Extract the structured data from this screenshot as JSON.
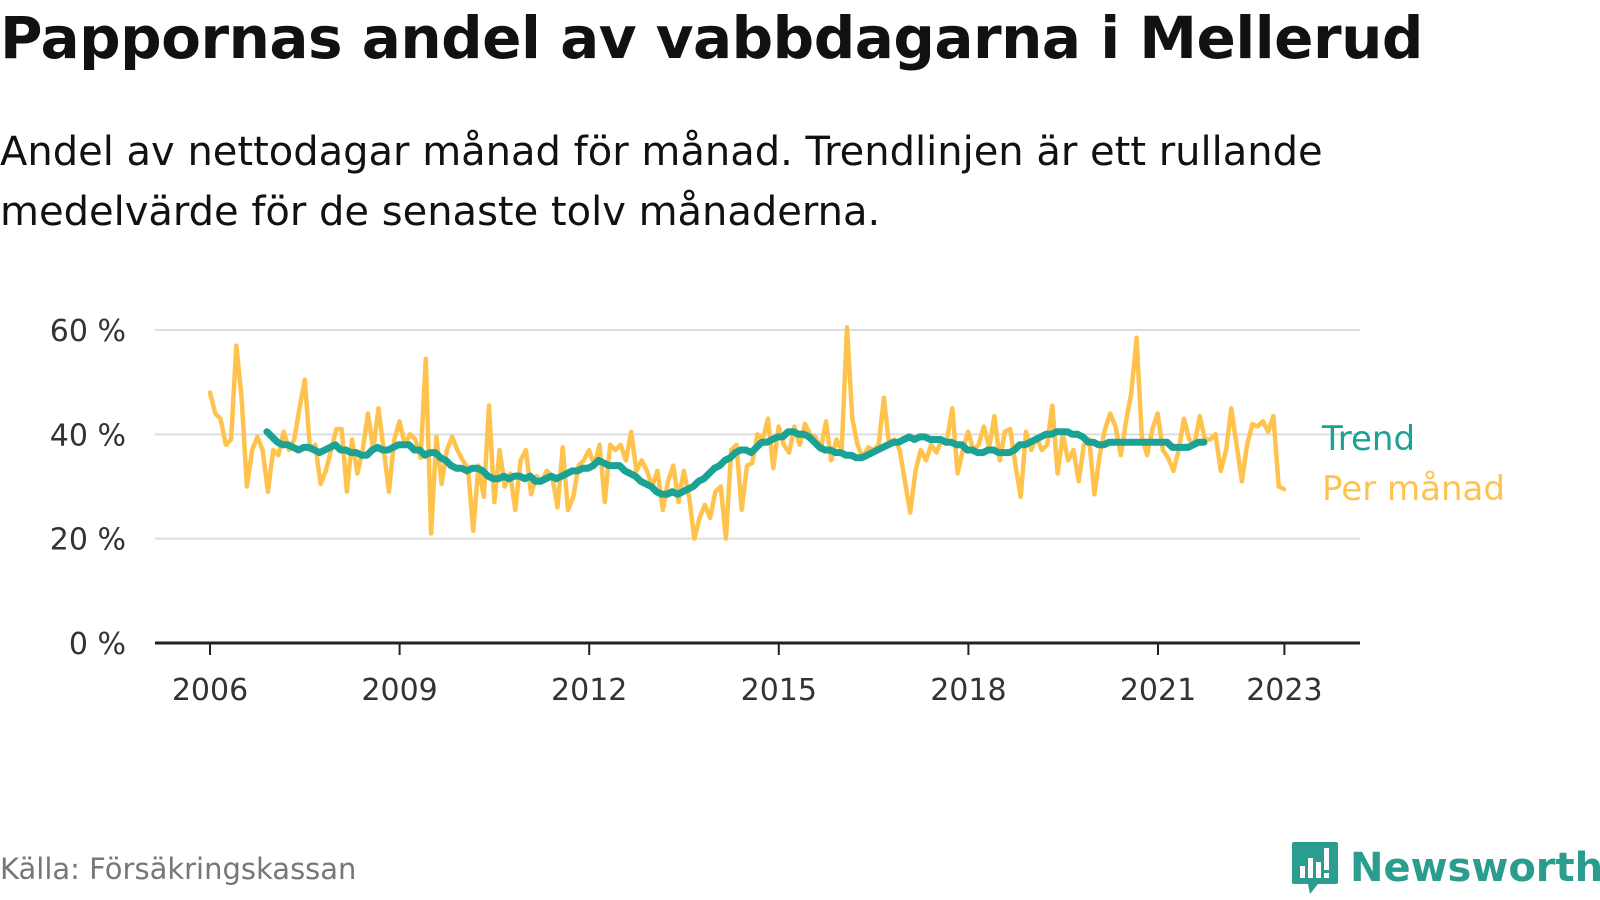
{
  "title": "Pappornas andel av vabbdagarna i Mellerud",
  "subtitle": "Andel av nettodagar månad för månad. Trendlinjen är ett rullande medelvärde för de senaste tolv månaderna.",
  "source": "Källa: Försäkringskassan",
  "brand": "Newsworthy",
  "colors": {
    "trend": "#1aa394",
    "monthly": "#ffc34d",
    "grid": "#dddddd",
    "axis": "#222222"
  },
  "chart_data": {
    "type": "line",
    "x_unit": "year",
    "ylim": [
      0,
      60
    ],
    "yticks": [
      0,
      20,
      40,
      60
    ],
    "ytick_labels": [
      "0 %",
      "20 %",
      "40 %",
      "60 %"
    ],
    "xticks": [
      2006,
      2009,
      2012,
      2015,
      2018,
      2021,
      2023
    ],
    "xtick_labels": [
      "2006",
      "2009",
      "2012",
      "2015",
      "2018",
      "2021",
      "2023"
    ],
    "grid": true,
    "legend": "inline-right",
    "series": [
      {
        "name": "Trend",
        "color": "#1aa394",
        "start": 2006.9,
        "step": 0.0833,
        "values": [
          40.5,
          39.5,
          38.5,
          38,
          38,
          37.5,
          37,
          37.5,
          37.5,
          37,
          36.5,
          37,
          37.5,
          38,
          37,
          37,
          36.5,
          36.5,
          36,
          36,
          37,
          37.5,
          37,
          37,
          37.5,
          38,
          38,
          38,
          37,
          37,
          36,
          36.5,
          36.5,
          35.5,
          35,
          34,
          33.5,
          33.5,
          33,
          33.5,
          33.5,
          33,
          32,
          31.5,
          31.5,
          32,
          31.5,
          32,
          32,
          31.5,
          32,
          31,
          31,
          31.5,
          32,
          31.5,
          32,
          32.5,
          33,
          33,
          33.5,
          33.5,
          34,
          35,
          34.5,
          34,
          34,
          34,
          33,
          32.5,
          32,
          31,
          30.5,
          30,
          29,
          28.5,
          28.5,
          29,
          28.5,
          29,
          29.5,
          30,
          31,
          31.5,
          32.5,
          33.5,
          34,
          35,
          35.5,
          36.5,
          37,
          37,
          36.5,
          37.5,
          38.5,
          38.5,
          39,
          39.5,
          39.5,
          40.5,
          40.5,
          40,
          40,
          39.5,
          38.5,
          37.5,
          37,
          37,
          36.5,
          36.5,
          36,
          36,
          35.5,
          35.5,
          36,
          36.5,
          37,
          37.5,
          38,
          38.5,
          38.5,
          39,
          39.5,
          39,
          39.5,
          39.5,
          39,
          39,
          39,
          38.5,
          38.5,
          38,
          38,
          37,
          37,
          36.5,
          36.5,
          37,
          37,
          36.5,
          36.5,
          36.5,
          37,
          38,
          38,
          38.5,
          39,
          39.5,
          40,
          40,
          40.5,
          40.5,
          40.5,
          40,
          40,
          39.5,
          38.5,
          38.5,
          38,
          38,
          38.5,
          38.5,
          38.5,
          38.5,
          38.5,
          38.5,
          38.5,
          38.5,
          38.5,
          38.5,
          38.5,
          38.5,
          37.5,
          37.5,
          37.5,
          37.5,
          38,
          38.5,
          38.5
        ]
      },
      {
        "name": "Per månad",
        "color": "#ffc34d",
        "start": 2006.0,
        "step": 0.0833,
        "values": [
          48,
          44,
          43,
          38,
          39,
          57,
          47,
          30,
          37,
          39.5,
          37,
          29,
          37,
          36,
          40.5,
          37,
          39,
          45,
          50.5,
          37,
          38,
          30.5,
          33,
          37,
          41,
          41,
          29,
          39,
          32.5,
          37,
          44,
          37,
          45,
          37,
          29,
          39,
          42.5,
          38,
          40,
          39,
          35.5,
          54.5,
          21,
          39.5,
          30.5,
          37,
          39.5,
          37,
          35,
          33.5,
          21.5,
          34,
          28,
          45.5,
          27,
          37,
          30,
          32.5,
          25.5,
          35,
          37,
          28.5,
          32,
          31,
          33,
          32,
          26,
          37.5,
          25.5,
          28,
          34,
          35,
          37,
          34,
          38,
          27,
          38,
          37,
          38,
          35,
          40.5,
          33,
          35,
          33,
          30,
          33,
          25.5,
          31,
          34,
          27,
          33,
          28,
          20,
          24,
          26.5,
          24,
          29,
          30,
          20,
          37,
          38,
          25.5,
          34,
          34.5,
          40,
          39,
          43,
          33.5,
          41.5,
          38,
          36.5,
          41.5,
          38,
          42,
          40,
          39.5,
          37,
          42.5,
          35,
          39,
          37,
          60.5,
          43,
          38,
          35.5,
          37.5,
          37,
          38,
          47,
          38,
          39,
          37,
          31,
          25,
          33,
          37,
          35,
          38,
          36.5,
          39,
          39,
          45,
          32.5,
          37,
          40.5,
          37,
          38,
          41.5,
          37.5,
          43.5,
          35,
          40.5,
          41,
          34,
          28,
          40.5,
          37,
          39.5,
          37,
          38,
          45.5,
          32.5,
          40,
          35,
          37,
          31,
          38,
          39,
          28.5,
          36,
          41,
          44,
          41.5,
          36,
          42.5,
          48,
          58.5,
          39.5,
          36,
          41,
          44,
          37,
          35.5,
          33,
          37,
          43,
          39,
          38,
          43.5,
          39,
          39,
          40,
          33,
          37,
          45,
          38,
          31,
          38,
          42,
          41.5,
          42.5,
          40.5,
          43.5,
          30,
          29.5
        ]
      }
    ]
  }
}
